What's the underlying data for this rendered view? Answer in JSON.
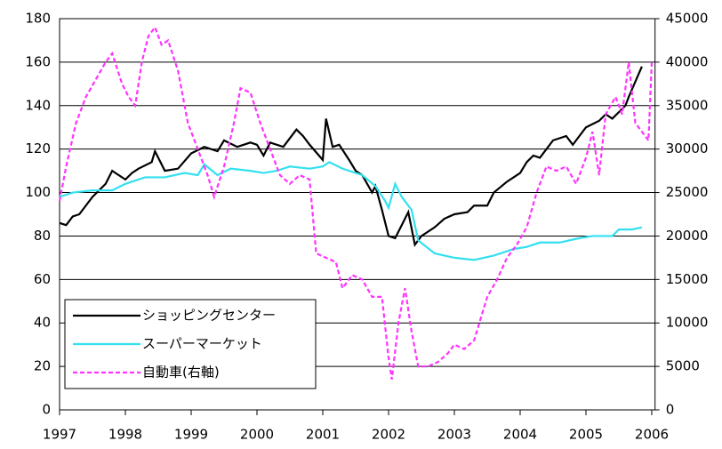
{
  "chart_data": {
    "type": "line",
    "xlim": [
      1997,
      2006.05
    ],
    "xticks": [
      1997,
      1998,
      1999,
      2000,
      2001,
      2002,
      2003,
      2004,
      2005,
      2006
    ],
    "ylim": [
      0,
      180
    ],
    "yticks": [
      0,
      20,
      40,
      60,
      80,
      100,
      120,
      140,
      160,
      180
    ],
    "y2lim": [
      0,
      45000
    ],
    "y2ticks": [
      0,
      5000,
      10000,
      15000,
      20000,
      25000,
      30000,
      35000,
      40000,
      45000
    ],
    "grid": true,
    "legend": "lower left",
    "series": [
      {
        "name": "ショッピングセンター",
        "color": "#000000",
        "dash": "solid",
        "x": [
          1997.0,
          1997.1,
          1997.2,
          1997.3,
          1997.5,
          1997.7,
          1997.8,
          1998.0,
          1998.1,
          1998.2,
          1998.4,
          1998.45,
          1998.6,
          1998.8,
          1999.0,
          1999.2,
          1999.4,
          1999.5,
          1999.7,
          1999.9,
          2000.0,
          2000.1,
          2000.2,
          2000.4,
          2000.5,
          2000.6,
          2000.7,
          2000.8,
          2001.0,
          2001.05,
          2001.15,
          2001.25,
          2001.4,
          2001.5,
          2001.6,
          2001.75,
          2001.8,
          2001.9,
          2002.0,
          2002.1,
          2002.2,
          2002.3,
          2002.4,
          2002.5,
          2002.7,
          2002.85,
          2003.0,
          2003.2,
          2003.3,
          2003.5,
          2003.6,
          2003.8,
          2004.0,
          2004.1,
          2004.2,
          2004.3,
          2004.5,
          2004.7,
          2004.8,
          2004.9,
          2005.0,
          2005.2,
          2005.3,
          2005.4,
          2005.5,
          2005.6,
          2005.65,
          2005.75,
          2005.85
        ],
        "values": [
          86,
          85,
          89,
          90,
          98,
          104,
          110,
          106,
          109,
          111,
          114,
          119,
          110,
          111,
          118,
          121,
          119,
          124,
          121,
          123,
          122,
          117,
          123,
          121,
          125,
          129,
          126,
          122,
          115,
          134,
          121,
          122,
          115,
          110,
          108,
          100,
          103,
          92,
          80,
          79,
          85,
          91,
          76,
          80,
          84,
          88,
          90,
          91,
          94,
          94,
          100,
          105,
          109,
          114,
          117,
          116,
          124,
          126,
          122,
          126,
          130,
          133,
          136,
          134,
          137,
          140,
          144,
          151,
          158
        ]
      },
      {
        "name": "スーパーマーケット",
        "color": "#33e0f0",
        "dash": "solid",
        "x": [
          1997.0,
          1997.2,
          1997.5,
          1997.8,
          1998.0,
          1998.3,
          1998.6,
          1998.9,
          1999.1,
          1999.2,
          1999.4,
          1999.6,
          1999.9,
          2000.1,
          2000.3,
          2000.5,
          2000.8,
          2001.0,
          2001.1,
          2001.3,
          2001.6,
          2001.8,
          2001.95,
          2002.0,
          2002.1,
          2002.2,
          2002.35,
          2002.45,
          2002.7,
          2003.0,
          2003.3,
          2003.6,
          2003.9,
          2004.1,
          2004.3,
          2004.6,
          2004.9,
          2005.1,
          2005.4,
          2005.5,
          2005.7,
          2005.85
        ],
        "values": [
          98,
          100,
          101,
          101,
          104,
          107,
          107,
          109,
          108,
          113,
          108,
          111,
          110,
          109,
          110,
          112,
          111,
          112,
          114,
          111,
          108,
          103,
          96,
          93,
          104,
          98,
          92,
          78,
          72,
          70,
          69,
          71,
          74,
          75,
          77,
          77,
          79,
          80,
          80,
          83,
          83,
          84
        ]
      },
      {
        "name": "自動車(右軸)",
        "color": "#ff33ff",
        "dash": "dashed",
        "axis": "y2",
        "x": [
          1997.0,
          1997.1,
          1997.25,
          1997.4,
          1997.55,
          1997.7,
          1997.8,
          1997.95,
          1998.05,
          1998.15,
          1998.25,
          1998.35,
          1998.45,
          1998.55,
          1998.65,
          1998.8,
          1998.95,
          1999.1,
          1999.25,
          1999.35,
          1999.5,
          1999.65,
          1999.75,
          1999.9,
          2000.05,
          2000.2,
          2000.35,
          2000.5,
          2000.65,
          2000.8,
          2000.9,
          2001.05,
          2001.2,
          2001.3,
          2001.45,
          2001.6,
          2001.75,
          2001.9,
          2002.0,
          2002.05,
          2002.15,
          2002.25,
          2002.35,
          2002.45,
          2002.6,
          2002.75,
          2002.9,
          2003.0,
          2003.15,
          2003.3,
          2003.5,
          2003.65,
          2003.8,
          2003.95,
          2004.1,
          2004.25,
          2004.4,
          2004.55,
          2004.7,
          2004.85,
          2005.0,
          2005.1,
          2005.2,
          2005.3,
          2005.45,
          2005.55,
          2005.65,
          2005.75,
          2005.85,
          2005.95,
          2006.0
        ],
        "values": [
          24000,
          28000,
          33000,
          36000,
          38000,
          40000,
          41000,
          37500,
          36000,
          35000,
          40000,
          43000,
          44000,
          42000,
          42500,
          39000,
          33000,
          30000,
          27000,
          24500,
          28000,
          33000,
          37000,
          36500,
          33000,
          30000,
          27000,
          26000,
          27000,
          26500,
          18000,
          17500,
          17000,
          14000,
          15500,
          15000,
          13000,
          13000,
          6000,
          3500,
          10000,
          14000,
          9000,
          5000,
          5000,
          5500,
          6500,
          7500,
          7000,
          8000,
          13000,
          15000,
          17500,
          19000,
          21000,
          25000,
          28000,
          27500,
          28000,
          26000,
          29000,
          32000,
          27000,
          34000,
          36000,
          34000,
          40000,
          33000,
          32000,
          31000,
          40000
        ]
      }
    ]
  }
}
